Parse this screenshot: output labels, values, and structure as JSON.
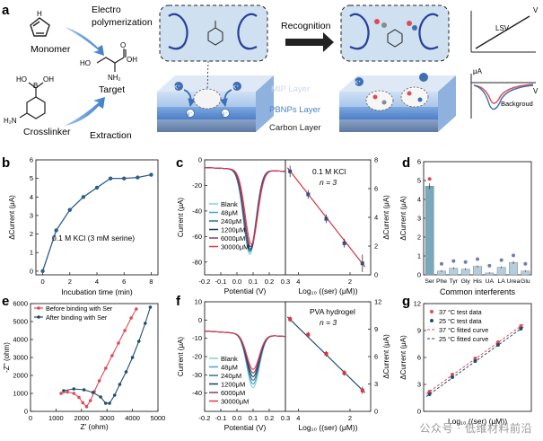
{
  "panel_a": {
    "letter": "a",
    "monomer": "Monomer",
    "electropolymerization": [
      "Electro",
      "polymerization"
    ],
    "target": "Target",
    "crosslinker": "Crosslinker",
    "extraction": "Extraction",
    "recognition": "Recognition",
    "mip_layer": "MIP Layer",
    "pbnps_layer": "PBNPs Layer",
    "carbon_layer": "Carbon Layer",
    "lsv": "LSV",
    "background": "Backgroud",
    "ua_axis": "μA",
    "v_axis": "V",
    "ions": [
      "K⁺",
      "K⁺",
      "K⁺"
    ],
    "electron": "e⁻",
    "chem": {
      "boh": "B",
      "oh1": "OH",
      "ho1": "HO",
      "h2n": "H₂N",
      "ho2": "HO",
      "nh2": "NH₂",
      "oh2": "OH",
      "o": "O",
      "nh": "H",
      "n": "N"
    }
  },
  "panel_b": {
    "letter": "b",
    "annotation": "0.1 M KCl (3 mM serine)",
    "chart_data": {
      "type": "line",
      "x": [
        0,
        1,
        2,
        3,
        4,
        5,
        6,
        7,
        8
      ],
      "y": [
        0.0,
        2.2,
        3.3,
        4.0,
        4.5,
        5.0,
        5.0,
        5.05,
        5.2
      ],
      "xlabel": "Incubation time (min)",
      "ylabel": "ΔCurrent (μA)",
      "xlim": [
        -0.5,
        8.5
      ],
      "ylim": [
        -0.2,
        6
      ],
      "xticks": [
        0,
        2,
        4,
        6,
        8
      ],
      "yticks": [
        0,
        1,
        2,
        3,
        4,
        5,
        6
      ],
      "color": "#2e5e8a"
    }
  },
  "panel_c": {
    "letter": "c",
    "annotation": "0.1 M KCl",
    "n_label": "n = 3",
    "chart_data": [
      {
        "type": "line",
        "xlabel": "Potential (V)",
        "ylabel": "Current (μA)",
        "xlim": [
          -0.2,
          0.3
        ],
        "ylim": [
          -90,
          0
        ],
        "xticks": [
          -0.2,
          -0.1,
          0.0,
          0.1,
          0.2,
          0.3
        ],
        "xtick_labels": [
          "-0.2",
          "-0.1",
          "0.0",
          "0.1",
          "0.2",
          "0.3"
        ],
        "yticks": [
          -80,
          -60,
          -40,
          -20,
          0
        ],
        "series": [
          {
            "name": "Blank",
            "color": "#7fd3d0",
            "valley_x": 0.08,
            "valley_y": -74
          },
          {
            "name": "48μM",
            "color": "#4aa3c8",
            "valley_x": 0.08,
            "valley_y": -72
          },
          {
            "name": "240μM",
            "color": "#2d6f99",
            "valley_x": 0.08,
            "valley_y": -71
          },
          {
            "name": "1200μM",
            "color": "#1b3b5c",
            "valley_x": 0.085,
            "valley_y": -70
          },
          {
            "name": "6000μM",
            "color": "#8a3a5a",
            "valley_x": 0.085,
            "valley_y": -68
          },
          {
            "name": "30000μM",
            "color": "#e2374a",
            "valley_x": 0.09,
            "valley_y": -66
          }
        ]
      },
      {
        "type": "scatter",
        "xlabel": "Log₁₀ ((ser) (μM))",
        "ylabel": "ΔCurrent (μA)",
        "xlim": [
          1.5,
          4.8
        ],
        "ylim": [
          0,
          8
        ],
        "xticks": [
          2,
          4
        ],
        "xticks_display": [
          4,
          2
        ],
        "yticks": [
          0,
          2,
          4,
          6,
          8
        ],
        "x": [
          1.68,
          2.38,
          3.08,
          3.78,
          4.48
        ],
        "y": [
          7.2,
          5.6,
          3.9,
          2.2,
          0.8
        ],
        "err": [
          0.4,
          0.3,
          0.3,
          0.3,
          0.6
        ],
        "fit_color": "#d8333f",
        "point_color": "#3a4a8a"
      }
    ]
  },
  "panel_d": {
    "letter": "d",
    "chart_data": {
      "type": "bar",
      "categories": [
        "Ser",
        "Phe",
        "Tyr",
        "Gly",
        "His",
        "UA",
        "LA",
        "Urea",
        "Glu"
      ],
      "values": [
        4.7,
        0.2,
        0.35,
        0.3,
        0.45,
        0.1,
        0.4,
        0.65,
        0.2
      ],
      "err": [
        0.15,
        0.05,
        0.05,
        0.05,
        0.05,
        0.03,
        0.05,
        0.08,
        0.04
      ],
      "xlabel": "Common interferents",
      "ylabel": "ΔCurrent (μA)",
      "ylim": [
        0,
        6
      ],
      "yticks": [
        0,
        1,
        2,
        3,
        4,
        5,
        6
      ],
      "colors": [
        "#7aa8b8",
        "#b7ccd9",
        "#b7ccd9",
        "#b7ccd9",
        "#b7ccd9",
        "#b7ccd9",
        "#b7ccd9",
        "#b7ccd9",
        "#b7ccd9"
      ]
    }
  },
  "panel_e": {
    "letter": "e",
    "chart_data": {
      "type": "scatter",
      "xlabel": "Z' (ohm)",
      "ylabel": "-Z'' (ohm)",
      "xlim": [
        0,
        5000
      ],
      "ylim": [
        0,
        6000
      ],
      "xticks": [
        0,
        1000,
        2000,
        3000,
        4000,
        5000
      ],
      "yticks": [
        0,
        1000,
        2000,
        3000,
        4000,
        5000,
        6000
      ],
      "series": [
        {
          "name": "Before binding with Ser",
          "color": "#e04a55",
          "x": [
            1200,
            1450,
            1700,
            1900,
            2050,
            2200,
            2350,
            2500,
            2700,
            2950,
            3200,
            3450,
            3700,
            3950,
            4150
          ],
          "y": [
            1000,
            1080,
            1000,
            780,
            480,
            260,
            600,
            1100,
            1700,
            2400,
            3100,
            3800,
            4500,
            5200,
            5700
          ]
        },
        {
          "name": "After binding with Ser",
          "color": "#1f4e6e",
          "x": [
            1300,
            1700,
            2100,
            2450,
            2750,
            2950,
            3100,
            3300,
            3500,
            3750,
            4000,
            4250,
            4500,
            4700
          ],
          "y": [
            1150,
            1250,
            1200,
            1050,
            800,
            450,
            450,
            900,
            1500,
            2200,
            3000,
            3900,
            4900,
            5800
          ]
        }
      ]
    }
  },
  "panel_f": {
    "letter": "f",
    "annotation": "PVA hydrogel",
    "n_label": "n = 3",
    "chart_data": [
      {
        "type": "line",
        "xlabel": "Potential (V)",
        "ylabel": "Current (μA)",
        "xlim": [
          -0.2,
          0.3
        ],
        "ylim": [
          -50,
          10
        ],
        "xticks": [
          -0.2,
          -0.1,
          0.0,
          0.1,
          0.2,
          0.3
        ],
        "xtick_labels": [
          "-0.2",
          "-0.1",
          "0.0",
          "0.1",
          "0.2",
          "0.3"
        ],
        "yticks": [
          -40,
          -30,
          -20,
          -10,
          0,
          10
        ],
        "series": [
          {
            "name": "Blank",
            "color": "#7fd3d0",
            "valley_x": 0.1,
            "valley_y": -37
          },
          {
            "name": "48μM",
            "color": "#4aa3c8",
            "valley_x": 0.1,
            "valley_y": -35
          },
          {
            "name": "240μM",
            "color": "#2d6f99",
            "valley_x": 0.1,
            "valley_y": -33
          },
          {
            "name": "1200μM",
            "color": "#1b3b5c",
            "valley_x": 0.1,
            "valley_y": -31
          },
          {
            "name": "6000μM",
            "color": "#8a3a5a",
            "valley_x": 0.1,
            "valley_y": -29
          },
          {
            "name": "30000μM",
            "color": "#e2374a",
            "valley_x": 0.1,
            "valley_y": -27
          }
        ]
      },
      {
        "type": "scatter",
        "xlabel": "Log₁₀ ((ser) (μM))",
        "ylabel": "ΔCurrent (μA)",
        "xlim": [
          1.5,
          4.8
        ],
        "ylim": [
          0,
          12
        ],
        "xticks": [
          2,
          4
        ],
        "xticks_display": [
          4,
          2
        ],
        "yticks": [
          0,
          3,
          6,
          9,
          12
        ],
        "x": [
          1.68,
          2.38,
          3.08,
          3.78,
          4.48
        ],
        "y": [
          10.1,
          8.4,
          6.3,
          4.2,
          2.3
        ],
        "err": [
          0.3,
          0.3,
          0.3,
          0.3,
          0.4
        ],
        "fit_color": "#1f4e6e",
        "point_color": "#d8333f"
      }
    ]
  },
  "panel_g": {
    "letter": "g",
    "chart_data": {
      "type": "line",
      "xlabel": "Log₁₀ ((ser) (μM))",
      "ylabel": "ΔCurrent (μA)",
      "xlim": [
        1.5,
        4.8
      ],
      "ylim": [
        0,
        12
      ],
      "yticks": [
        0,
        3,
        6,
        9,
        12
      ],
      "series": [
        {
          "name": "37 °C test data",
          "color": "#e04a55",
          "marker": "dot",
          "x": [
            1.68,
            2.38,
            3.08,
            3.78,
            4.48
          ],
          "y": [
            2.2,
            4.1,
            5.9,
            7.7,
            9.5
          ]
        },
        {
          "name": "25 °C test data",
          "color": "#1f4e6e",
          "marker": "dot",
          "x": [
            1.68,
            2.38,
            3.08,
            3.78,
            4.48
          ],
          "y": [
            1.9,
            3.8,
            5.6,
            7.4,
            9.2
          ]
        },
        {
          "name": "37 °C fitted curve",
          "color": "#e04a55",
          "marker": "dash"
        },
        {
          "name": "25 °C fitted curve",
          "color": "#1f4e6e",
          "marker": "dash"
        }
      ]
    }
  },
  "watermark": "公众号 · 低维材料前沿"
}
